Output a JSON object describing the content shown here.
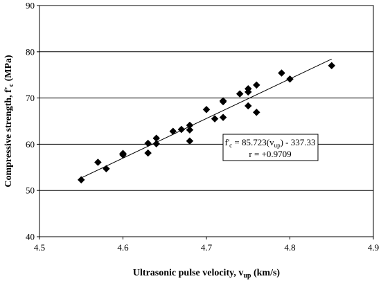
{
  "chart_data": {
    "type": "scatter",
    "title": "",
    "xlabel": {
      "main": "Ultrasonic pulse velocity, v",
      "sub": "up",
      "tail": " (km/s)"
    },
    "ylabel": {
      "main": "Compressive strength, f'",
      "sub": "c",
      "tail": " (MPa)"
    },
    "xlim": [
      4.5,
      4.9
    ],
    "ylim": [
      40,
      90
    ],
    "xticks": [
      4.5,
      4.6,
      4.7,
      4.8,
      4.9
    ],
    "yticks": [
      40,
      50,
      60,
      70,
      80,
      90
    ],
    "xtick_labels": [
      "4.5",
      "4.6",
      "4.7",
      "4.8",
      "4.9"
    ],
    "ytick_labels": [
      "40",
      "50",
      "60",
      "70",
      "80",
      "90"
    ],
    "grid": "horizontal",
    "marker": "diamond",
    "marker_color": "#000000",
    "points": [
      {
        "x": 4.55,
        "y": 52.3
      },
      {
        "x": 4.57,
        "y": 56.1
      },
      {
        "x": 4.58,
        "y": 54.7
      },
      {
        "x": 4.6,
        "y": 57.7
      },
      {
        "x": 4.6,
        "y": 58.0
      },
      {
        "x": 4.63,
        "y": 58.1
      },
      {
        "x": 4.63,
        "y": 60.2
      },
      {
        "x": 4.64,
        "y": 60.1
      },
      {
        "x": 4.64,
        "y": 61.3
      },
      {
        "x": 4.66,
        "y": 62.8
      },
      {
        "x": 4.67,
        "y": 63.2
      },
      {
        "x": 4.68,
        "y": 63.1
      },
      {
        "x": 4.68,
        "y": 64.1
      },
      {
        "x": 4.68,
        "y": 60.7
      },
      {
        "x": 4.7,
        "y": 67.5
      },
      {
        "x": 4.71,
        "y": 65.5
      },
      {
        "x": 4.72,
        "y": 65.8
      },
      {
        "x": 4.72,
        "y": 69.2
      },
      {
        "x": 4.72,
        "y": 69.4
      },
      {
        "x": 4.74,
        "y": 70.9
      },
      {
        "x": 4.75,
        "y": 72.0
      },
      {
        "x": 4.75,
        "y": 71.3
      },
      {
        "x": 4.75,
        "y": 68.3
      },
      {
        "x": 4.76,
        "y": 72.8
      },
      {
        "x": 4.76,
        "y": 66.9
      },
      {
        "x": 4.79,
        "y": 75.4
      },
      {
        "x": 4.8,
        "y": 74.1
      },
      {
        "x": 4.85,
        "y": 77.0
      }
    ],
    "trendline": {
      "slope": 85.723,
      "intercept": -337.33,
      "x_range": [
        4.55,
        4.85
      ],
      "equation": {
        "pre": "f'",
        "pre_sub": "c",
        "mid": " = 85.723(v",
        "mid_sub": "up",
        "post": ") - 337.33"
      },
      "r_label": "r = +0.9709"
    }
  }
}
